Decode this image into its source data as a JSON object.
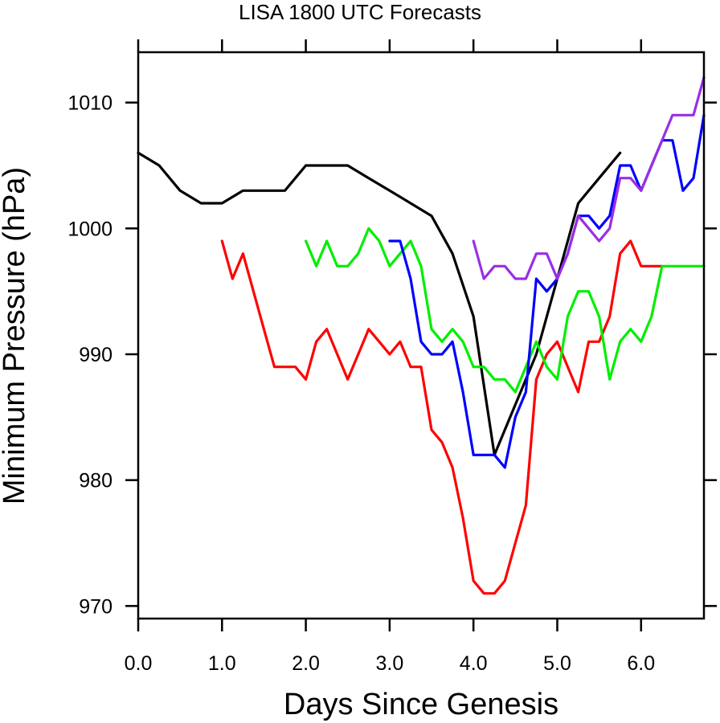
{
  "chart_data": {
    "type": "line",
    "title": "LISA 1800 UTC Forecasts",
    "xlabel": "Days Since Genesis",
    "ylabel": "Minimum Pressure (hPa)",
    "xlim": [
      0.0,
      6.75
    ],
    "ylim": [
      969,
      1014
    ],
    "xticks": [
      {
        "value": 0.0,
        "label": "0.0"
      },
      {
        "value": 1.0,
        "label": "1.0"
      },
      {
        "value": 2.0,
        "label": "2.0"
      },
      {
        "value": 3.0,
        "label": "3.0"
      },
      {
        "value": 4.0,
        "label": "4.0"
      },
      {
        "value": 5.0,
        "label": "5.0"
      },
      {
        "value": 6.0,
        "label": "6.0"
      }
    ],
    "yticks": [
      {
        "value": 970,
        "label": "970"
      },
      {
        "value": 980,
        "label": "980"
      },
      {
        "value": 990,
        "label": "990"
      },
      {
        "value": 1000,
        "label": "1000"
      },
      {
        "value": 1010,
        "label": "1010"
      }
    ],
    "grid": false,
    "legend": "none",
    "series": [
      {
        "color": "#000000",
        "x": [
          0.0,
          0.25,
          0.5,
          0.75,
          1.0,
          1.25,
          1.5,
          1.75,
          2.0,
          2.25,
          2.5,
          2.75,
          3.0,
          3.25,
          3.5,
          3.75,
          4.0,
          4.25,
          4.5,
          4.75,
          5.0,
          5.25,
          5.5,
          5.75
        ],
        "y": [
          1006,
          1005,
          1003,
          1002,
          1002,
          1003,
          1003,
          1003,
          1005,
          1005,
          1005,
          1004,
          1003,
          1002,
          1001,
          998,
          993,
          982,
          986,
          990,
          996,
          1002,
          1004,
          1006
        ]
      },
      {
        "color": "#ff0000",
        "x": [
          1.0,
          1.125,
          1.25,
          1.375,
          1.5,
          1.625,
          1.75,
          1.875,
          2.0,
          2.125,
          2.25,
          2.375,
          2.5,
          2.625,
          2.75,
          2.875,
          3.0,
          3.125,
          3.25,
          3.375,
          3.5,
          3.625,
          3.75,
          3.875,
          4.0,
          4.125,
          4.25,
          4.375,
          4.5,
          4.625,
          4.75,
          4.875,
          5.0,
          5.125,
          5.25,
          5.375,
          5.5,
          5.625,
          5.75,
          5.875,
          6.0,
          6.125,
          6.25
        ],
        "y": [
          999,
          996,
          998,
          995,
          992,
          989,
          989,
          989,
          988,
          991,
          992,
          990,
          988,
          990,
          992,
          991,
          990,
          991,
          989,
          989,
          984,
          983,
          981,
          977,
          972,
          971,
          971,
          972,
          975,
          978,
          988,
          990,
          991,
          989,
          987,
          991,
          991,
          993,
          998,
          999,
          997,
          997,
          997
        ]
      },
      {
        "color": "#00ee00",
        "x": [
          2.0,
          2.125,
          2.25,
          2.375,
          2.5,
          2.625,
          2.75,
          2.875,
          3.0,
          3.125,
          3.25,
          3.375,
          3.5,
          3.625,
          3.75,
          3.875,
          4.0,
          4.125,
          4.25,
          4.375,
          4.5,
          4.625,
          4.75,
          4.875,
          5.0,
          5.125,
          5.25,
          5.375,
          5.5,
          5.625,
          5.75,
          5.875,
          6.0,
          6.125,
          6.25,
          6.5,
          6.75
        ],
        "y": [
          999,
          997,
          999,
          997,
          997,
          998,
          1000,
          999,
          997,
          998,
          999,
          997,
          992,
          991,
          992,
          991,
          989,
          989,
          988,
          988,
          987,
          989,
          991,
          989,
          988,
          993,
          995,
          995,
          993,
          988,
          991,
          992,
          991,
          993,
          997,
          997,
          997
        ]
      },
      {
        "color": "#0000ff",
        "x": [
          3.0,
          3.125,
          3.25,
          3.375,
          3.5,
          3.625,
          3.75,
          3.875,
          4.0,
          4.125,
          4.25,
          4.375,
          4.5,
          4.625,
          4.75,
          4.875,
          5.0,
          5.125,
          5.25,
          5.375,
          5.5,
          5.625,
          5.75,
          5.875,
          6.0,
          6.125,
          6.25,
          6.375,
          6.5,
          6.625,
          6.75
        ],
        "y": [
          999,
          999,
          996,
          991,
          990,
          990,
          991,
          987,
          982,
          982,
          982,
          981,
          985,
          987,
          996,
          995,
          996,
          998,
          1001,
          1001,
          1000,
          1001,
          1005,
          1005,
          1003,
          1005,
          1007,
          1007,
          1003,
          1004,
          1009
        ]
      },
      {
        "color": "#9a2ee6",
        "x": [
          4.0,
          4.125,
          4.25,
          4.375,
          4.5,
          4.625,
          4.75,
          4.875,
          5.0,
          5.125,
          5.25,
          5.375,
          5.5,
          5.625,
          5.75,
          5.875,
          6.0,
          6.125,
          6.25,
          6.375,
          6.5,
          6.625,
          6.75
        ],
        "y": [
          999,
          996,
          997,
          997,
          996,
          996,
          998,
          998,
          996,
          998,
          1001,
          1000,
          999,
          1000,
          1004,
          1004,
          1003,
          1005,
          1007,
          1009,
          1009,
          1009,
          1012
        ]
      }
    ]
  }
}
